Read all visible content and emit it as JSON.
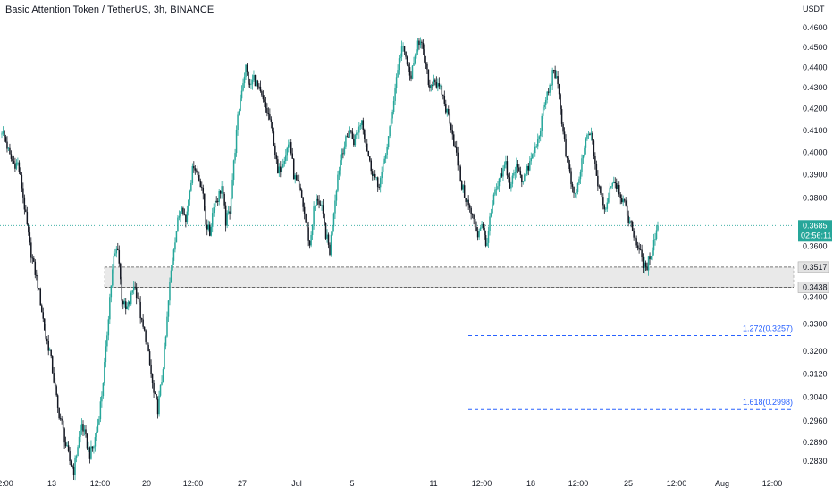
{
  "header": {
    "title": "Basic Attention Token / TetherUS, 3h, BINANCE",
    "currency": "USDT"
  },
  "colors": {
    "up": "#26a69a",
    "down": "#131722",
    "current_price_badge": "#26a69a",
    "fib_line": "#2962ff",
    "zone_fill": "#e9e9e9"
  },
  "price_axis": {
    "labels": [
      "0.4600",
      "0.4500",
      "0.4400",
      "0.4300",
      "0.4200",
      "0.4100",
      "0.4000",
      "0.3900",
      "0.3800",
      "0.3600",
      "0.3400",
      "0.3300",
      "0.3200",
      "0.3120",
      "0.3040",
      "0.2960",
      "0.2890",
      "0.2830"
    ],
    "scale": "log"
  },
  "time_axis": {
    "labels": [
      "2:00",
      "13",
      "12:00",
      "20",
      "12:00",
      "27",
      "Jul",
      "5",
      "11",
      "12:00",
      "18",
      "12:00",
      "25",
      "12:00",
      "Aug",
      "12:00"
    ]
  },
  "current_price": {
    "value": "0.3685",
    "countdown": "02:56:11"
  },
  "support_zone": {
    "top_label": "0.3517",
    "bottom_label": "0.3438",
    "top": 0.3517,
    "bottom": 0.3438
  },
  "fib_levels": [
    {
      "label": "1.272(0.3257)",
      "value": 0.3257
    },
    {
      "label": "1.618(0.2998)",
      "value": 0.2998
    }
  ],
  "chart_data": {
    "type": "candlestick",
    "title": "Basic Attention Token / TetherUS, 3h, BINANCE",
    "y_unit": "USDT",
    "ylim": [
      0.279,
      0.466
    ],
    "closes": [
      0.41,
      0.405,
      0.398,
      0.395,
      0.395,
      0.385,
      0.372,
      0.36,
      0.352,
      0.345,
      0.335,
      0.325,
      0.32,
      0.31,
      0.3,
      0.295,
      0.288,
      0.283,
      0.28,
      0.288,
      0.295,
      0.29,
      0.285,
      0.288,
      0.295,
      0.305,
      0.32,
      0.34,
      0.355,
      0.36,
      0.34,
      0.335,
      0.338,
      0.345,
      0.34,
      0.33,
      0.325,
      0.315,
      0.305,
      0.3,
      0.31,
      0.325,
      0.345,
      0.36,
      0.37,
      0.378,
      0.37,
      0.385,
      0.395,
      0.39,
      0.385,
      0.37,
      0.365,
      0.378,
      0.38,
      0.385,
      0.37,
      0.375,
      0.395,
      0.415,
      0.43,
      0.44,
      0.43,
      0.435,
      0.43,
      0.425,
      0.42,
      0.415,
      0.405,
      0.39,
      0.395,
      0.4,
      0.405,
      0.39,
      0.385,
      0.38,
      0.37,
      0.36,
      0.375,
      0.38,
      0.375,
      0.365,
      0.358,
      0.375,
      0.39,
      0.4,
      0.405,
      0.41,
      0.405,
      0.41,
      0.415,
      0.405,
      0.395,
      0.39,
      0.385,
      0.39,
      0.4,
      0.41,
      0.425,
      0.44,
      0.45,
      0.445,
      0.435,
      0.44,
      0.455,
      0.45,
      0.44,
      0.43,
      0.435,
      0.43,
      0.428,
      0.42,
      0.415,
      0.405,
      0.395,
      0.385,
      0.38,
      0.375,
      0.37,
      0.365,
      0.37,
      0.36,
      0.37,
      0.38,
      0.385,
      0.39,
      0.395,
      0.385,
      0.39,
      0.395,
      0.388,
      0.39,
      0.395,
      0.4,
      0.405,
      0.415,
      0.425,
      0.43,
      0.44,
      0.43,
      0.415,
      0.4,
      0.39,
      0.38,
      0.385,
      0.395,
      0.405,
      0.41,
      0.4,
      0.385,
      0.38,
      0.375,
      0.385,
      0.388,
      0.385,
      0.38,
      0.375,
      0.37,
      0.365,
      0.36,
      0.355,
      0.35,
      0.356,
      0.362,
      0.3685
    ]
  }
}
